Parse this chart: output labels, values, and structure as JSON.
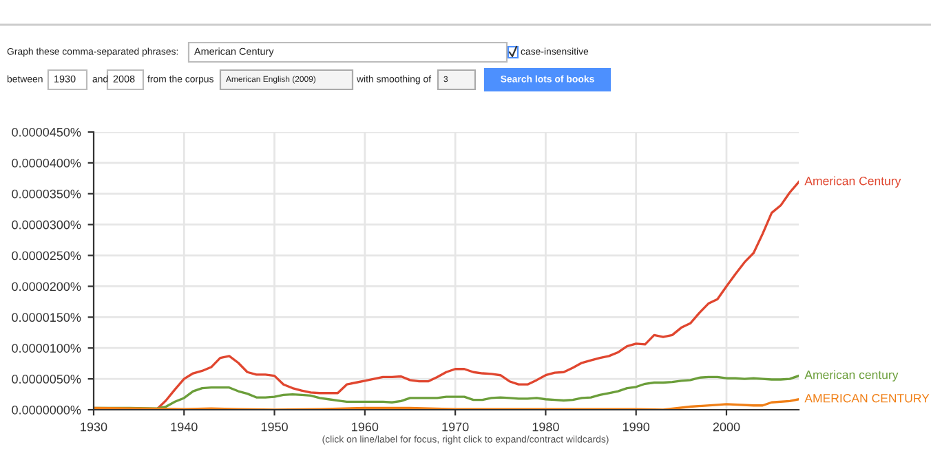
{
  "chart_data": {
    "type": "line",
    "x": [
      1930,
      1934,
      1937,
      1938,
      1939,
      1940,
      1941,
      1942,
      1943,
      1944,
      1945,
      1946,
      1947,
      1948,
      1949,
      1950,
      1951,
      1952,
      1953,
      1954,
      1955,
      1956,
      1957,
      1958,
      1959,
      1960,
      1961,
      1962,
      1963,
      1964,
      1965,
      1966,
      1967,
      1968,
      1969,
      1970,
      1971,
      1972,
      1973,
      1974,
      1975,
      1976,
      1977,
      1978,
      1979,
      1980,
      1981,
      1982,
      1983,
      1984,
      1985,
      1986,
      1987,
      1988,
      1989,
      1990,
      1991,
      1992,
      1993,
      1994,
      1995,
      1996,
      1997,
      1998,
      1999,
      2000,
      2001,
      2002,
      2003,
      2004,
      2005,
      2006,
      2007,
      2008
    ],
    "series": [
      {
        "name": "American Century",
        "color": "#e0462f",
        "values": [
          1e-07,
          5e-08,
          1e-07,
          1.5e-06,
          3.3e-06,
          5e-06,
          5.9e-06,
          6.3e-06,
          6.9e-06,
          8.4e-06,
          8.7e-06,
          7.6e-06,
          6.1e-06,
          5.7e-06,
          5.7e-06,
          5.5e-06,
          4.1e-06,
          3.5e-06,
          3.1e-06,
          2.8e-06,
          2.7e-06,
          2.7e-06,
          2.7e-06,
          4.1e-06,
          4.4e-06,
          4.7e-06,
          5e-06,
          5.3e-06,
          5.3e-06,
          5.4e-06,
          4.8e-06,
          4.6e-06,
          4.6e-06,
          5.3e-06,
          6.1e-06,
          6.6e-06,
          6.6e-06,
          6.1e-06,
          5.9e-06,
          5.8e-06,
          5.6e-06,
          4.6e-06,
          4.1e-06,
          4.1e-06,
          4.8e-06,
          5.6e-06,
          6e-06,
          6.1e-06,
          6.8e-06,
          7.6e-06,
          8e-06,
          8.4e-06,
          8.7e-06,
          9.3e-06,
          1.03e-05,
          1.07e-05,
          1.06e-05,
          1.21e-05,
          1.18e-05,
          1.21e-05,
          1.33e-05,
          1.4e-05,
          1.57e-05,
          1.72e-05,
          1.79e-05,
          2e-05,
          2.2e-05,
          2.39e-05,
          2.54e-05,
          2.85e-05,
          3.19e-05,
          3.31e-05,
          3.52e-05,
          3.69e-05
        ]
      },
      {
        "name": "American century",
        "color": "#6b9e3a",
        "values": [
          3e-07,
          3e-07,
          2e-07,
          5e-07,
          1.3e-06,
          1.9e-06,
          3e-06,
          3.5e-06,
          3.6e-06,
          3.6e-06,
          3.6e-06,
          3e-06,
          2.6e-06,
          2e-06,
          2e-06,
          2.1e-06,
          2.4e-06,
          2.5e-06,
          2.4e-06,
          2.3e-06,
          1.9e-06,
          1.7e-06,
          1.5e-06,
          1.3e-06,
          1.3e-06,
          1.3e-06,
          1.3e-06,
          1.3e-06,
          1.2e-06,
          1.4e-06,
          1.9e-06,
          1.9e-06,
          1.9e-06,
          1.9e-06,
          2.1e-06,
          2.1e-06,
          2.1e-06,
          1.6e-06,
          1.6e-06,
          1.9e-06,
          2e-06,
          1.9e-06,
          1.8e-06,
          1.8e-06,
          1.9e-06,
          1.7e-06,
          1.6e-06,
          1.5e-06,
          1.6e-06,
          1.9e-06,
          2e-06,
          2.4e-06,
          2.7e-06,
          3e-06,
          3.5e-06,
          3.7e-06,
          4.2e-06,
          4.4e-06,
          4.4e-06,
          4.5e-06,
          4.7e-06,
          4.8e-06,
          5.2e-06,
          5.3e-06,
          5.3e-06,
          5.1e-06,
          5.1e-06,
          5e-06,
          5.1e-06,
          5e-06,
          4.9e-06,
          4.9e-06,
          5e-06,
          5.5e-06
        ]
      },
      {
        "name": "AMERICAN CENTURY",
        "color": "#f07f16",
        "x": [
          1930,
          1935,
          1940,
          1943,
          1946,
          1950,
          1955,
          1960,
          1965,
          1970,
          1975,
          1980,
          1985,
          1990,
          1993,
          1996,
          1999,
          2000,
          2003,
          2004,
          2005,
          2007,
          2008
        ],
        "values": [
          3e-07,
          2e-07,
          1e-07,
          2e-07,
          1e-07,
          0,
          1e-07,
          3e-07,
          3e-07,
          1e-07,
          1e-07,
          1e-07,
          1e-07,
          1e-07,
          0,
          5e-07,
          8e-07,
          9e-07,
          7e-07,
          7e-07,
          1.2e-06,
          1.4e-06,
          1.7e-06
        ]
      }
    ],
    "xlim": [
      1930,
      2008
    ],
    "xticks": [
      1930,
      1940,
      1950,
      1960,
      1970,
      1980,
      1990,
      2000
    ],
    "ylim": [
      0,
      4.5e-05
    ],
    "yticks": [
      {
        "value": 0,
        "label": "0.0000000%"
      },
      {
        "value": 5e-06,
        "label": "0.0000050%"
      },
      {
        "value": 1e-05,
        "label": "0.0000100%"
      },
      {
        "value": 1.5e-05,
        "label": "0.0000150%"
      },
      {
        "value": 2e-05,
        "label": "0.0000200%"
      },
      {
        "value": 2.5e-05,
        "label": "0.0000250%"
      },
      {
        "value": 3e-05,
        "label": "0.0000300%"
      },
      {
        "value": 3.5e-05,
        "label": "0.0000350%"
      },
      {
        "value": 4e-05,
        "label": "0.0000400%"
      },
      {
        "value": 4.5e-05,
        "label": "0.0000450%"
      }
    ],
    "grid": true,
    "legend": false,
    "annotations": [
      "Graph these comma-separated phrases:",
      "American Century",
      "case-insensitive",
      "between",
      "1930",
      "and",
      "2008",
      "from the corpus",
      "American English (2009)",
      "with smoothing of",
      "3",
      "Search lots of books",
      "(click on line/label for focus, right click to expand/contract wildcards)"
    ]
  }
}
